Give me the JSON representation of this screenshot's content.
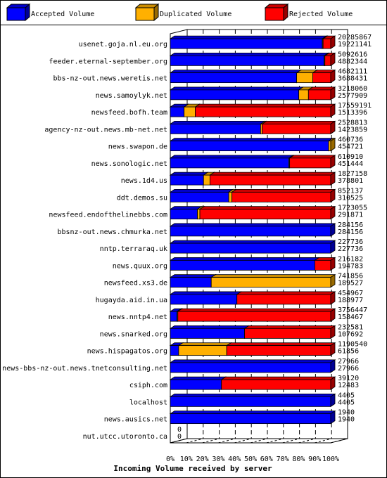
{
  "chart_data": {
    "type": "bar",
    "orientation": "horizontal",
    "stacked": true,
    "xlabel": "Incoming Volume received by server",
    "xlim": [
      0,
      100
    ],
    "x_ticks": [
      "0%",
      "10%",
      "20%",
      "30%",
      "40%",
      "50%",
      "60%",
      "70%",
      "80%",
      "90%",
      "100%"
    ],
    "grid": true,
    "legend_position": "top",
    "series_legend": [
      {
        "name": "Accepted Volume",
        "color": "#0000ff"
      },
      {
        "name": "Duplicated Volume",
        "color": "#ffb000"
      },
      {
        "name": "Rejected Volume",
        "color": "#ff0000"
      }
    ],
    "categories": [
      "usenet.goja.nl.eu.org",
      "feeder.eternal-september.org",
      "bbs-nz-out.news.weretis.net",
      "news.samoylyk.net",
      "newsfeed.bofh.team",
      "agency-nz-out.news.mb-net.net",
      "news.swapon.de",
      "news.sonologic.net",
      "news.1d4.us",
      "ddt.demos.su",
      "newsfeed.endofthelinebbs.com",
      "bbsnz-out.news.chmurka.net",
      "nntp.terraraq.uk",
      "news.quux.org",
      "newsfeed.xs3.de",
      "hugayda.aid.in.ua",
      "news.nntp4.net",
      "news.snarked.org",
      "news.hispagatos.org",
      "news-bbs-nz-out.news.tnetconsulting.net",
      "csiph.com",
      "localhost",
      "news.ausics.net",
      "nut.utcc.utoronto.ca"
    ],
    "total_volume": [
      "20285867",
      "5092616",
      "4682111",
      "3218060",
      "17559191",
      "2528813",
      "460736",
      "610910",
      "1827158",
      "852137",
      "1723055",
      "284156",
      "227736",
      "216182",
      "741856",
      "454967",
      "3756447",
      "232581",
      "1190540",
      "27966",
      "39120",
      "4405",
      "1940",
      "0"
    ],
    "accepted_volume": [
      "19221141",
      "4882344",
      "3688431",
      "2577909",
      "1513396",
      "1423859",
      "454721",
      "451444",
      "378801",
      "310525",
      "291871",
      "284156",
      "227736",
      "194783",
      "189527",
      "188977",
      "158467",
      "107692",
      "61856",
      "27966",
      "12483",
      "4405",
      "1940",
      "0"
    ],
    "series": [
      {
        "name": "Accepted Volume",
        "values": [
          94.76,
          95.87,
          78.78,
          80.11,
          8.62,
          56.31,
          98.69,
          73.9,
          20.73,
          36.44,
          16.94,
          100,
          100,
          90.1,
          25.55,
          41.54,
          4.22,
          46.3,
          5.2,
          100,
          31.91,
          100,
          100,
          0
        ]
      },
      {
        "name": "Duplicated Volume",
        "values": [
          0.5,
          0.5,
          10.0,
          6.0,
          7.0,
          1.0,
          1.31,
          0.5,
          4.0,
          2.0,
          1.5,
          0,
          0,
          0,
          74.45,
          0,
          0.5,
          0,
          30.0,
          0,
          0,
          0,
          0,
          0
        ]
      },
      {
        "name": "Rejected Volume",
        "values": [
          4.74,
          3.63,
          11.22,
          13.89,
          84.38,
          42.69,
          0,
          25.6,
          75.27,
          61.56,
          81.56,
          0,
          0,
          9.9,
          0,
          58.46,
          95.28,
          53.7,
          64.8,
          0,
          68.09,
          0,
          0,
          0
        ]
      }
    ]
  }
}
